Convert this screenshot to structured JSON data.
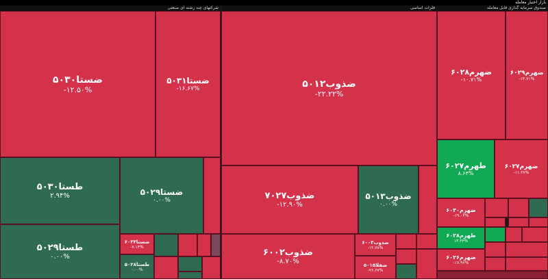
{
  "header": {
    "title": "بازار اختیار معامله"
  },
  "sections": [
    {
      "title": "شرکتهای چند رشته ای صنعتی",
      "tiles": [
        {
          "name": "ضستا۵۰۳۰",
          "change": "-۱۲.۵۰%"
        },
        {
          "name": "ضستا۵۰۳۱",
          "change": "-۱۶.۶۷%"
        },
        {
          "name": "طستا۵۰۳۰",
          "change": "۲.۹۴%"
        },
        {
          "name": "ضستا۵۰۲۹",
          "change": "۰.۰۰%"
        },
        {
          "name": "طستا۵۰۲۹",
          "change": "۰.۰۰%"
        },
        {
          "name": "ضستا۶۰۳۳",
          "change": "-۷.۱۴%"
        },
        {
          "name": "طستا۵۰۲۸",
          "change": "۰.۰۰%"
        }
      ]
    },
    {
      "title": "فلزات اساسی",
      "tiles": [
        {
          "name": "ضذوب۵۰۱۲",
          "change": "-۲۲.۲۲%"
        },
        {
          "name": "ضذوب۷۰۲۷",
          "change": "-۱۲.۹۰%"
        },
        {
          "name": "ضذوب۵۰۱۳",
          "change": "۰.۰۰%"
        },
        {
          "name": "ضذوب۶۰۰۲",
          "change": "-۸.۷۰%"
        },
        {
          "name": "ضذوب۶۰۰۳",
          "change": "-۱۲.۷۸%"
        },
        {
          "name": "ضفلا۵۰۱۵",
          "change": "-۲۶.۶۷%"
        }
      ]
    },
    {
      "title": "صندوق سرمایه گذاری قابل معامله",
      "tiles": [
        {
          "name": "ضهرم۶۰۲۸",
          "change": "-۱۰.۷۱%"
        },
        {
          "name": "ضهرم۶۰۲۹",
          "change": "-۱۴.۷۱%"
        },
        {
          "name": "طهرم۶۰۲۷",
          "change": "۸.۶۴%"
        },
        {
          "name": "ضهرم۶۰۲۷",
          "change": "-۱۱.۲۷%"
        },
        {
          "name": "ضهرم۶۰۳۰",
          "change": "-۱۹.۰۴%"
        },
        {
          "name": "طهرم۶۰۲۸",
          "change": "۱۳.۳۳%"
        },
        {
          "name": "ضهرم۶۰۲۶",
          "change": "-۱۷.۹۶%"
        }
      ]
    }
  ]
}
